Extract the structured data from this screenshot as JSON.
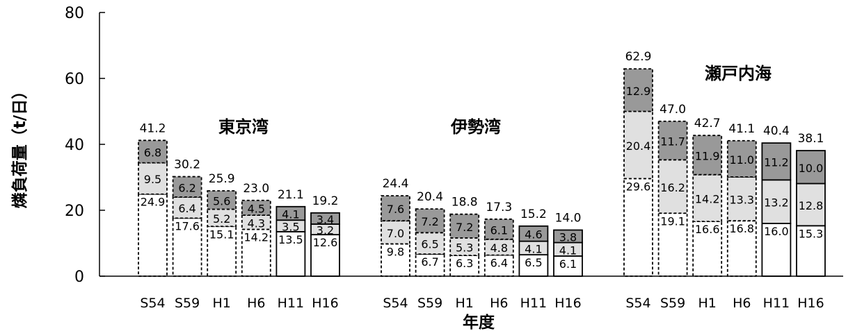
{
  "chart_data": {
    "type": "bar",
    "stacked": true,
    "ylabel": "燐負荷量（t/日）",
    "xlabel": "年度",
    "ylim": [
      0,
      80
    ],
    "yticks": [
      0,
      20,
      40,
      60,
      80
    ],
    "grid": false,
    "legend": "none",
    "segment_colors": [
      "#ffffff",
      "#e0e0e0",
      "#999999"
    ],
    "groups": [
      {
        "name": "東京湾",
        "bars": [
          {
            "x": "S54",
            "total": "41.2",
            "segments": [
              24.9,
              9.5,
              6.8
            ],
            "labels": [
              "24.9",
              "9.5",
              "6.8"
            ],
            "dashed": true
          },
          {
            "x": "S59",
            "total": "30.2",
            "segments": [
              17.6,
              6.4,
              6.2
            ],
            "labels": [
              "17.6",
              "6.4",
              "6.2"
            ],
            "dashed": true
          },
          {
            "x": "H1",
            "total": "25.9",
            "segments": [
              15.1,
              5.2,
              5.6
            ],
            "labels": [
              "15.1",
              "5.2",
              "5.6"
            ],
            "dashed": true
          },
          {
            "x": "H6",
            "total": "23.0",
            "segments": [
              14.2,
              4.3,
              4.5
            ],
            "labels": [
              "14.2",
              "4.3",
              "4.5"
            ],
            "dashed": true
          },
          {
            "x": "H11",
            "total": "21.1",
            "segments": [
              13.5,
              3.5,
              4.1
            ],
            "labels": [
              "13.5",
              "3.5",
              "4.1"
            ],
            "dashed": false
          },
          {
            "x": "H16",
            "total": "19.2",
            "segments": [
              12.6,
              3.2,
              3.4
            ],
            "labels": [
              "12.6",
              "3.2",
              "3.4"
            ],
            "dashed": false
          }
        ]
      },
      {
        "name": "伊勢湾",
        "bars": [
          {
            "x": "S54",
            "total": "24.4",
            "segments": [
              9.8,
              7.0,
              7.6
            ],
            "labels": [
              "9.8",
              "7.0",
              "7.6"
            ],
            "dashed": true
          },
          {
            "x": "S59",
            "total": "20.4",
            "segments": [
              6.7,
              6.5,
              7.2
            ],
            "labels": [
              "6.7",
              "6.5",
              "7.2"
            ],
            "dashed": true
          },
          {
            "x": "H1",
            "total": "18.8",
            "segments": [
              6.3,
              5.3,
              7.2
            ],
            "labels": [
              "6.3",
              "5.3",
              "7.2"
            ],
            "dashed": true
          },
          {
            "x": "H6",
            "total": "17.3",
            "segments": [
              6.4,
              4.8,
              6.1
            ],
            "labels": [
              "6.4",
              "4.8",
              "6.1"
            ],
            "dashed": true
          },
          {
            "x": "H11",
            "total": "15.2",
            "segments": [
              6.5,
              4.1,
              4.6
            ],
            "labels": [
              "6.5",
              "4.1",
              "4.6"
            ],
            "dashed": false
          },
          {
            "x": "H16",
            "total": "14.0",
            "segments": [
              6.1,
              4.1,
              3.8
            ],
            "labels": [
              "6.1",
              "4.1",
              "3.8"
            ],
            "dashed": false
          }
        ]
      },
      {
        "name": "瀬戸内海",
        "bars": [
          {
            "x": "S54",
            "total": "62.9",
            "segments": [
              29.6,
              20.4,
              12.9
            ],
            "labels": [
              "29.6",
              "20.4",
              "12.9"
            ],
            "dashed": true
          },
          {
            "x": "S59",
            "total": "47.0",
            "segments": [
              19.1,
              16.2,
              11.7
            ],
            "labels": [
              "19.1",
              "16.2",
              "11.7"
            ],
            "dashed": true
          },
          {
            "x": "H1",
            "total": "42.7",
            "segments": [
              16.6,
              14.2,
              11.9
            ],
            "labels": [
              "16.6",
              "14.2",
              "11.9"
            ],
            "dashed": true
          },
          {
            "x": "H6",
            "total": "41.1",
            "segments": [
              16.8,
              13.3,
              11.0
            ],
            "labels": [
              "16.8",
              "13.3",
              "11.0"
            ],
            "dashed": true
          },
          {
            "x": "H11",
            "total": "40.4",
            "segments": [
              16.0,
              13.2,
              11.2
            ],
            "labels": [
              "16.0",
              "13.2",
              "11.2"
            ],
            "dashed": false
          },
          {
            "x": "H16",
            "total": "38.1",
            "segments": [
              15.3,
              12.8,
              10.0
            ],
            "labels": [
              "15.3",
              "12.8",
              "10.0"
            ],
            "dashed": false
          }
        ]
      }
    ]
  }
}
